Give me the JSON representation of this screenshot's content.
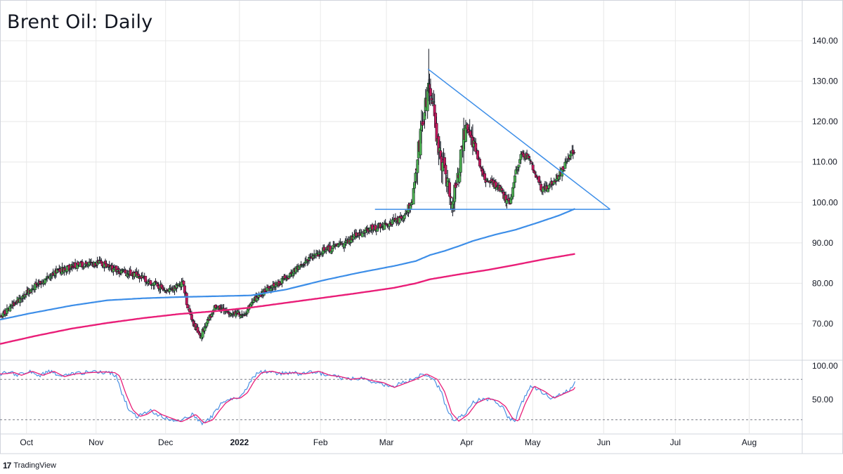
{
  "colors": {
    "bull": "#4caf50",
    "bear": "#c2185b",
    "ma_fast": "#3d8ee8",
    "ma_slow": "#e91e78",
    "trendline": "#3d8ee8",
    "stoch_k": "#4a90e2",
    "stoch_d": "#e91e78",
    "grid": "#e8e8e8",
    "axis_text": "#131722"
  },
  "brand": {
    "logo": "17",
    "text": "TradingView"
  },
  "chart_data": {
    "type": "candlestick",
    "title": "Brent Oil: Daily",
    "price_axis": {
      "ticks": [
        "140.00",
        "130.00",
        "120.00",
        "110.00",
        "100.00",
        "90.00",
        "80.00",
        "70.00"
      ],
      "ylim": [
        62,
        142
      ]
    },
    "oscillator_axis": {
      "ticks": [
        "100.00",
        "50.00"
      ],
      "overbought": 80,
      "oversold": 20,
      "ylim": [
        0,
        100
      ]
    },
    "time_axis": {
      "labels": [
        "Oct",
        "Nov",
        "Dec",
        "2022",
        "Feb",
        "Mar",
        "Apr",
        "May",
        "Jun",
        "Jul",
        "Aug"
      ],
      "label_day": [
        37,
        134,
        231,
        334,
        447,
        539,
        651,
        743,
        842,
        942,
        1045
      ],
      "day_range": [
        1,
        1119
      ]
    },
    "price_anchors": [
      [
        0,
        71.5
      ],
      [
        20,
        75
      ],
      [
        50,
        79.5
      ],
      [
        80,
        83
      ],
      [
        110,
        84.5
      ],
      [
        140,
        85
      ],
      [
        165,
        83
      ],
      [
        190,
        82
      ],
      [
        215,
        80
      ],
      [
        235,
        78
      ],
      [
        255,
        80
      ],
      [
        262,
        74
      ],
      [
        270,
        70
      ],
      [
        280,
        67
      ],
      [
        290,
        71
      ],
      [
        300,
        74
      ],
      [
        320,
        73
      ],
      [
        340,
        72
      ],
      [
        355,
        76
      ],
      [
        370,
        78
      ],
      [
        390,
        80
      ],
      [
        410,
        83
      ],
      [
        430,
        86
      ],
      [
        450,
        88
      ],
      [
        470,
        89
      ],
      [
        490,
        91
      ],
      [
        510,
        93
      ],
      [
        530,
        94
      ],
      [
        545,
        95
      ],
      [
        560,
        96
      ],
      [
        575,
        100
      ],
      [
        583,
        112
      ],
      [
        590,
        120
      ],
      [
        597,
        128
      ],
      [
        603,
        127
      ],
      [
        608,
        116
      ],
      [
        615,
        110
      ],
      [
        622,
        108
      ],
      [
        630,
        99
      ],
      [
        638,
        105
      ],
      [
        645,
        115
      ],
      [
        652,
        120
      ],
      [
        660,
        115
      ],
      [
        668,
        110
      ],
      [
        676,
        106
      ],
      [
        685,
        105
      ],
      [
        695,
        104
      ],
      [
        705,
        101
      ],
      [
        712,
        100
      ],
      [
        720,
        108
      ],
      [
        728,
        112
      ],
      [
        736,
        111
      ],
      [
        745,
        108
      ],
      [
        755,
        103
      ],
      [
        765,
        104
      ],
      [
        775,
        106
      ],
      [
        785,
        108
      ],
      [
        795,
        112
      ],
      [
        802,
        112
      ]
    ],
    "sma_fast": [
      [
        0,
        71
      ],
      [
        40,
        72.5
      ],
      [
        100,
        74.5
      ],
      [
        150,
        75.8
      ],
      [
        200,
        76.3
      ],
      [
        250,
        76.6
      ],
      [
        300,
        76.8
      ],
      [
        350,
        77
      ],
      [
        400,
        78.5
      ],
      [
        450,
        80.7
      ],
      [
        500,
        82.6
      ],
      [
        550,
        84.3
      ],
      [
        580,
        85.5
      ],
      [
        600,
        87
      ],
      [
        620,
        88
      ],
      [
        640,
        89.2
      ],
      [
        660,
        90.5
      ],
      [
        690,
        92
      ],
      [
        720,
        93.3
      ],
      [
        750,
        95
      ],
      [
        780,
        96.8
      ],
      [
        803,
        98.5
      ]
    ],
    "sma_slow": [
      [
        0,
        65
      ],
      [
        50,
        67
      ],
      [
        100,
        68.8
      ],
      [
        150,
        70.2
      ],
      [
        200,
        71.4
      ],
      [
        250,
        72.4
      ],
      [
        300,
        73.1
      ],
      [
        350,
        74
      ],
      [
        400,
        75.2
      ],
      [
        450,
        76.4
      ],
      [
        500,
        77.6
      ],
      [
        550,
        78.9
      ],
      [
        580,
        80
      ],
      [
        600,
        81
      ],
      [
        640,
        82.2
      ],
      [
        680,
        83.3
      ],
      [
        720,
        84.6
      ],
      [
        760,
        86
      ],
      [
        803,
        87.3
      ]
    ],
    "trendlines": [
      {
        "name": "resistance",
        "from": [
          597,
          133
        ],
        "to": [
          851,
          98.3
        ]
      },
      {
        "name": "support",
        "from": [
          523,
          98.3
        ],
        "to": [
          851,
          98.3
        ]
      }
    ],
    "stochastic_anchors": [
      [
        0,
        88
      ],
      [
        15,
        90
      ],
      [
        25,
        86
      ],
      [
        40,
        92
      ],
      [
        55,
        86
      ],
      [
        70,
        92
      ],
      [
        85,
        84
      ],
      [
        100,
        88
      ],
      [
        120,
        90
      ],
      [
        140,
        91
      ],
      [
        155,
        90
      ],
      [
        162,
        85
      ],
      [
        170,
        60
      ],
      [
        180,
        35
      ],
      [
        190,
        25
      ],
      [
        200,
        28
      ],
      [
        210,
        35
      ],
      [
        220,
        28
      ],
      [
        235,
        22
      ],
      [
        248,
        17
      ],
      [
        258,
        22
      ],
      [
        268,
        28
      ],
      [
        280,
        15
      ],
      [
        292,
        20
      ],
      [
        300,
        32
      ],
      [
        310,
        45
      ],
      [
        320,
        52
      ],
      [
        330,
        52
      ],
      [
        340,
        60
      ],
      [
        350,
        78
      ],
      [
        360,
        90
      ],
      [
        375,
        92
      ],
      [
        390,
        88
      ],
      [
        405,
        90
      ],
      [
        420,
        88
      ],
      [
        440,
        92
      ],
      [
        455,
        86
      ],
      [
        470,
        84
      ],
      [
        485,
        80
      ],
      [
        500,
        82
      ],
      [
        515,
        78
      ],
      [
        530,
        75
      ],
      [
        545,
        68
      ],
      [
        560,
        74
      ],
      [
        575,
        80
      ],
      [
        590,
        88
      ],
      [
        605,
        80
      ],
      [
        615,
        62
      ],
      [
        625,
        30
      ],
      [
        635,
        18
      ],
      [
        648,
        28
      ],
      [
        660,
        45
      ],
      [
        675,
        52
      ],
      [
        690,
        48
      ],
      [
        700,
        40
      ],
      [
        710,
        22
      ],
      [
        718,
        18
      ],
      [
        728,
        45
      ],
      [
        740,
        70
      ],
      [
        755,
        62
      ],
      [
        768,
        52
      ],
      [
        780,
        58
      ],
      [
        795,
        65
      ],
      [
        803,
        78
      ]
    ]
  }
}
